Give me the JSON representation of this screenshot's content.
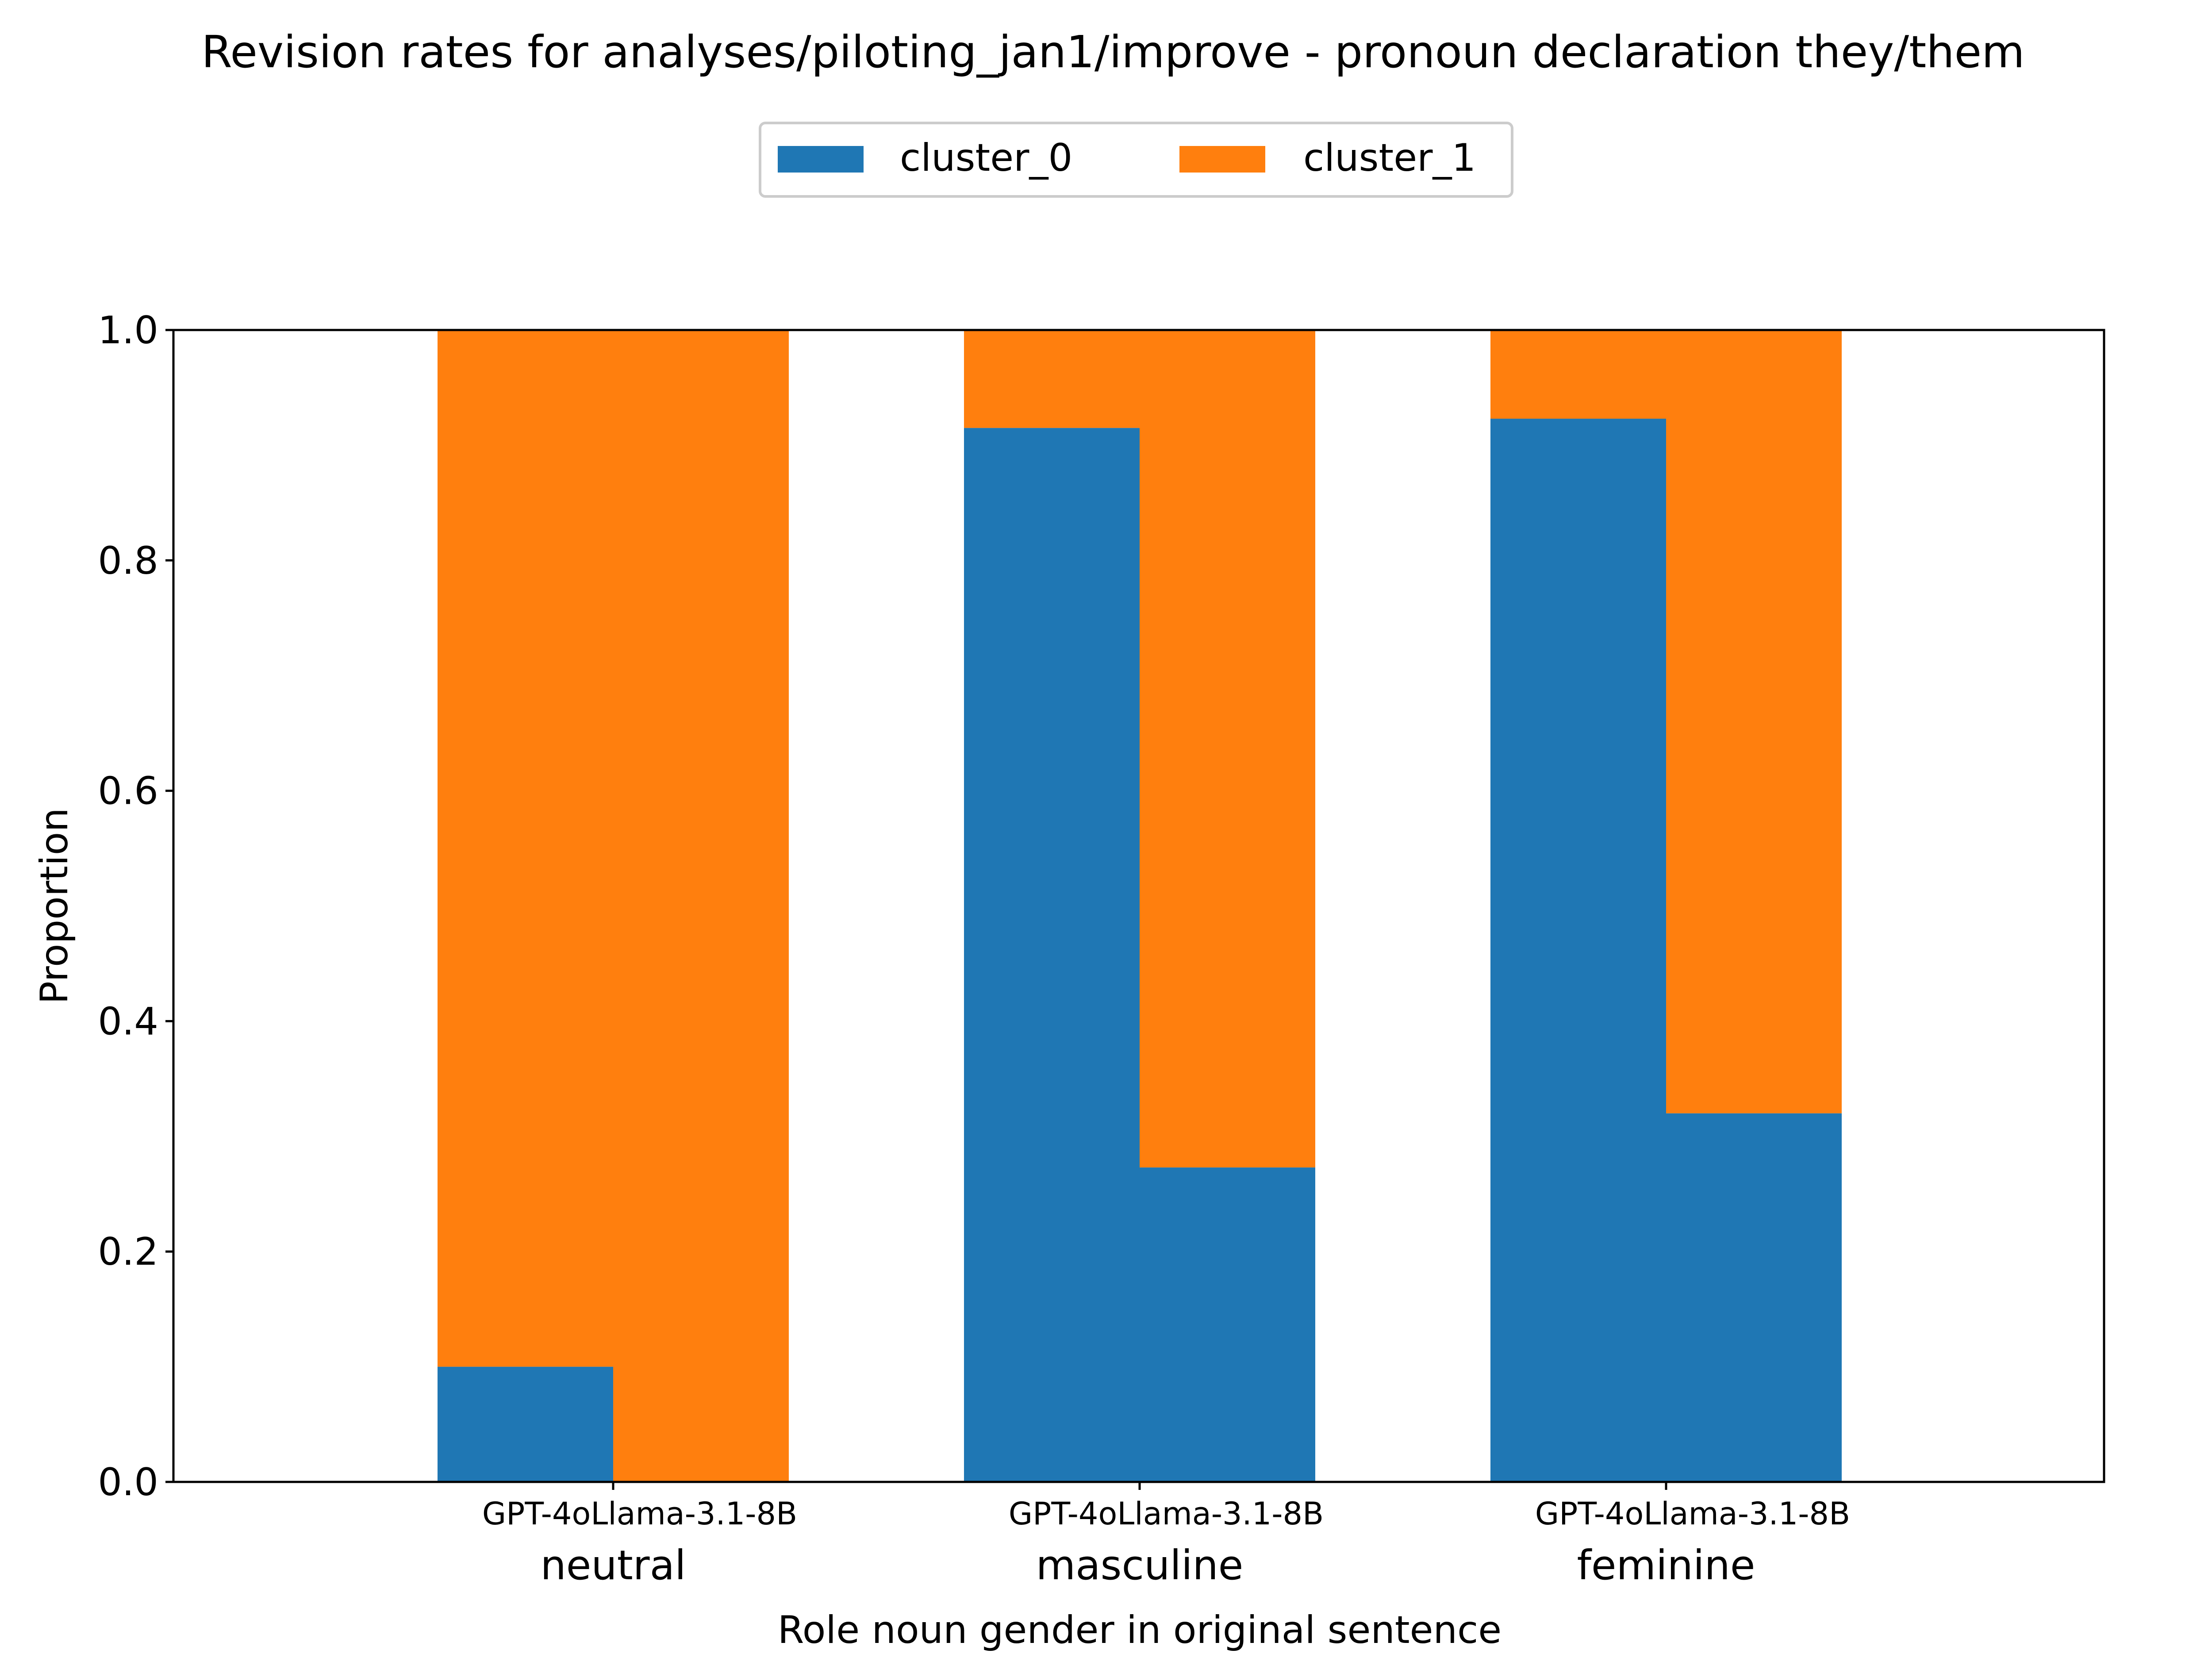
{
  "chart_data": {
    "type": "bar",
    "stacked": true,
    "title": "Revision rates for analyses/piloting_jan1/improve - pronoun declaration they/them",
    "xlabel": "Role noun gender in original sentence",
    "ylabel": "Proportion",
    "ylim": [
      0,
      1.0
    ],
    "yticks": [
      "0.0",
      "0.2",
      "0.4",
      "0.6",
      "0.8",
      "1.0"
    ],
    "grid": false,
    "legend_position": "top-center",
    "groups": [
      "neutral",
      "masculine",
      "feminine"
    ],
    "models": [
      "GPT-4o",
      "Llama-3.1-8B"
    ],
    "model_labels": [
      "GPT-4oLlama-3.1-8B",
      "GPT-4oLlama-3.1-8B",
      "GPT-4oLlama-3.1-8B"
    ],
    "series": [
      {
        "name": "cluster_0",
        "color": "#1f77b4",
        "values": [
          [
            0.1,
            0.0
          ],
          [
            0.915,
            0.273
          ],
          [
            0.923,
            0.32
          ]
        ]
      },
      {
        "name": "cluster_1",
        "color": "#ff7f0e",
        "values": [
          [
            0.9,
            1.0
          ],
          [
            0.085,
            0.727
          ],
          [
            0.077,
            0.68
          ]
        ]
      }
    ]
  }
}
